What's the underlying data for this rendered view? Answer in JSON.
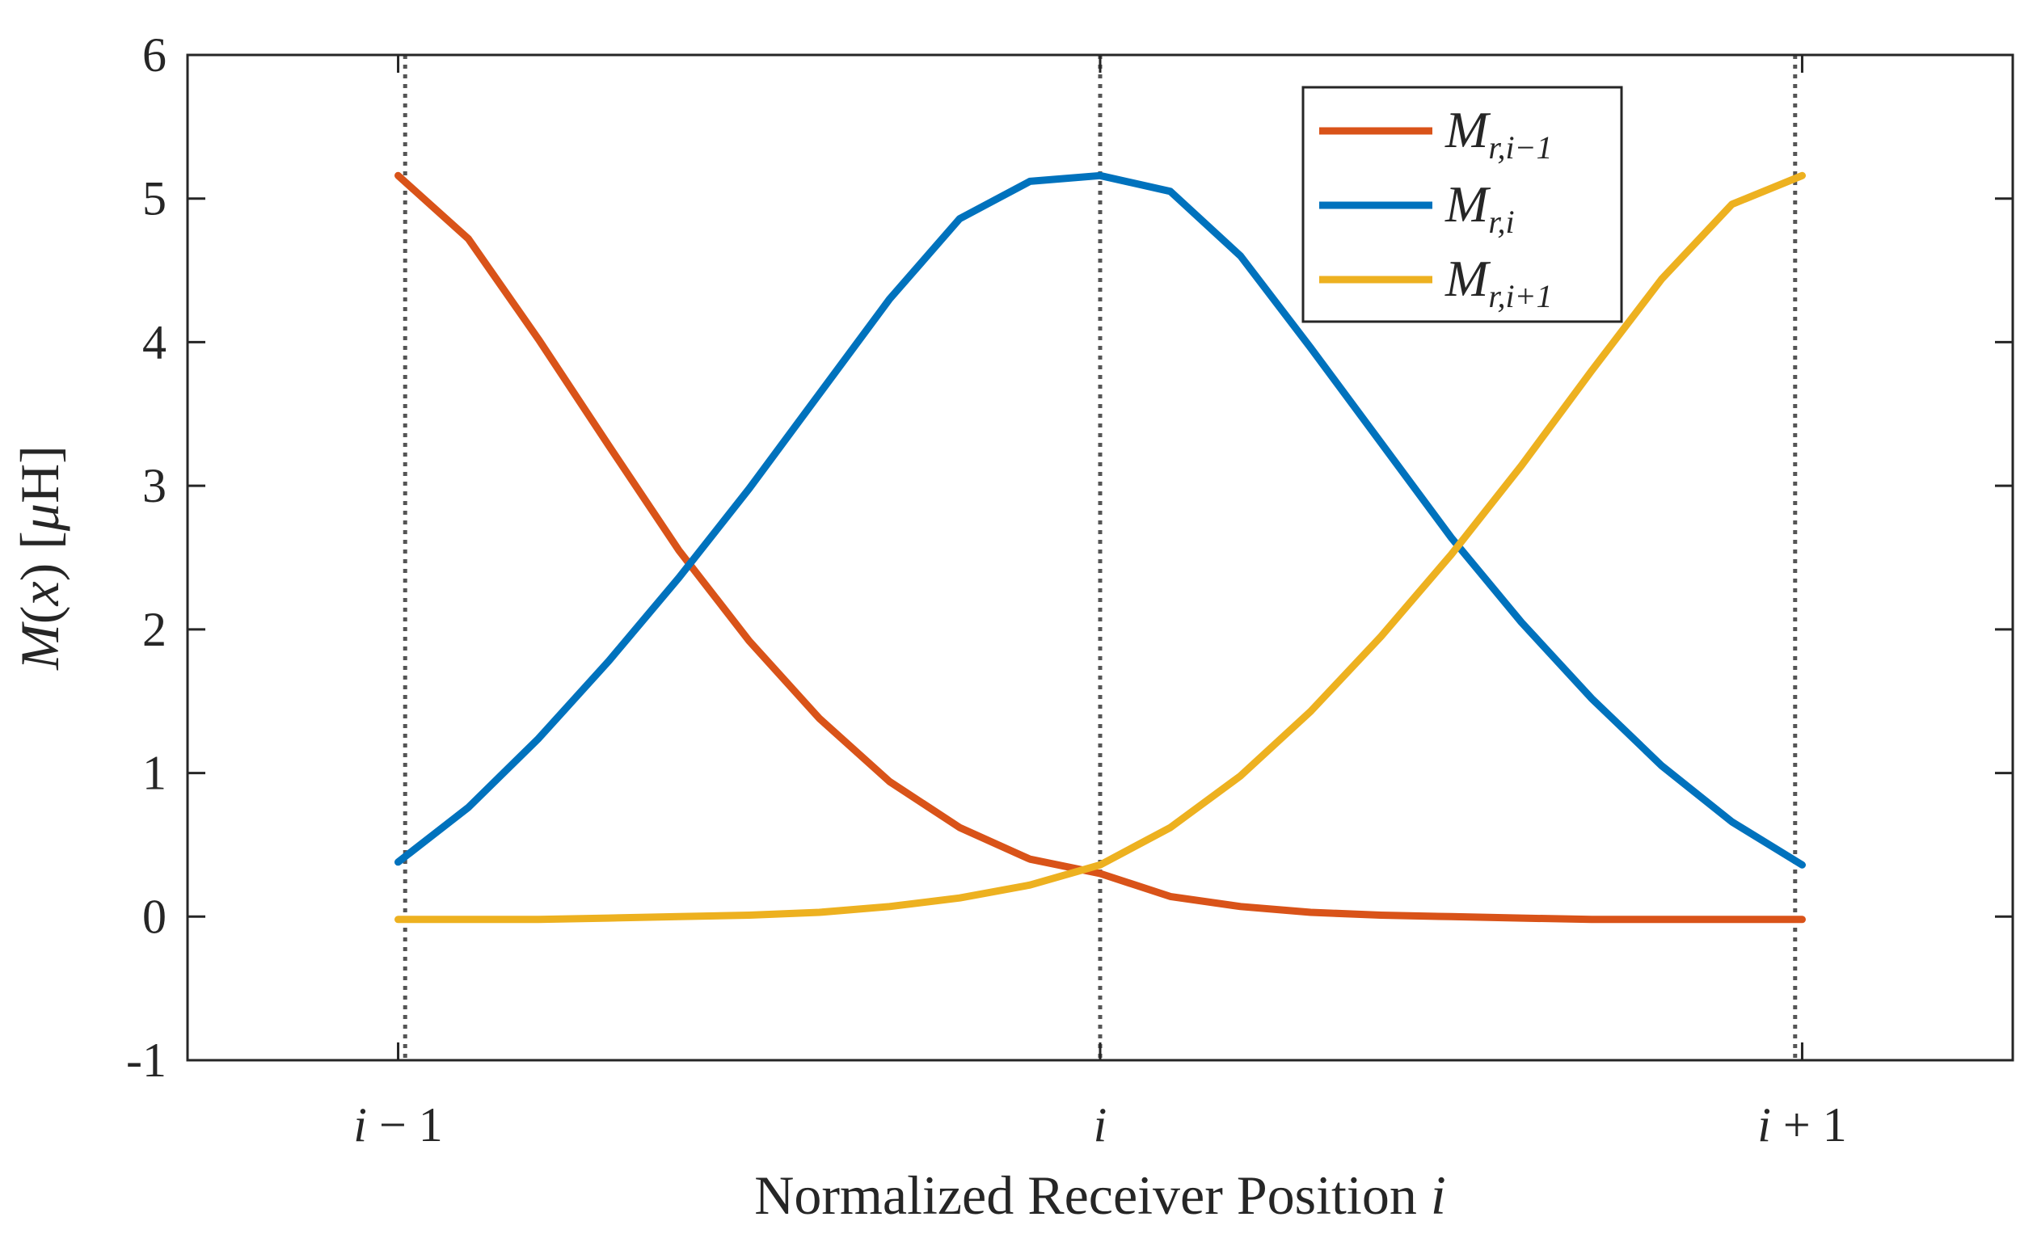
{
  "chart_data": {
    "type": "line",
    "title": "",
    "xlabel": "Normalized Receiver Position i",
    "ylabel": "M(x) [μH]",
    "xlim": [
      -1.3,
      1.3
    ],
    "ylim": [
      -1,
      6
    ],
    "yticks": [
      -1,
      0,
      1,
      2,
      3,
      4,
      5,
      6
    ],
    "xticks": [
      {
        "value": -1,
        "label": "i − 1"
      },
      {
        "value": 0,
        "label": "i"
      },
      {
        "value": 1,
        "label": "i + 1"
      }
    ],
    "vlines": [
      -0.99,
      0,
      0.99
    ],
    "legend_position": "top-right",
    "grid": false,
    "x": [
      -1.0,
      -0.9,
      -0.8,
      -0.7,
      -0.6,
      -0.5,
      -0.4,
      -0.3,
      -0.2,
      -0.1,
      0.0,
      0.1,
      0.2,
      0.3,
      0.4,
      0.5,
      0.6,
      0.7,
      0.8,
      0.9,
      1.0
    ],
    "series": [
      {
        "name": "M_{r,i-1}",
        "color": "#D95319",
        "values": [
          5.16,
          4.72,
          4.02,
          3.28,
          2.55,
          1.92,
          1.38,
          0.94,
          0.62,
          0.4,
          0.3,
          0.14,
          0.07,
          0.03,
          0.01,
          0.0,
          -0.01,
          -0.02,
          -0.02,
          -0.02,
          -0.02
        ]
      },
      {
        "name": "M_{r,i}",
        "color": "#0072BD",
        "values": [
          0.38,
          0.76,
          1.24,
          1.78,
          2.36,
          2.98,
          3.64,
          4.3,
          4.86,
          5.12,
          5.16,
          5.05,
          4.6,
          3.96,
          3.3,
          2.64,
          2.05,
          1.52,
          1.05,
          0.66,
          0.36
        ]
      },
      {
        "name": "M_{r,i+1}",
        "color": "#EDB120",
        "values": [
          -0.02,
          -0.02,
          -0.02,
          -0.01,
          0.0,
          0.01,
          0.03,
          0.07,
          0.13,
          0.22,
          0.36,
          0.62,
          0.98,
          1.43,
          1.95,
          2.52,
          3.14,
          3.8,
          4.44,
          4.96,
          5.16
        ]
      }
    ],
    "legend_labels": [
      {
        "base": "M",
        "sub": "r,i−1"
      },
      {
        "base": "M",
        "sub": "r,i"
      },
      {
        "base": "M",
        "sub": "r,i+1"
      }
    ]
  }
}
